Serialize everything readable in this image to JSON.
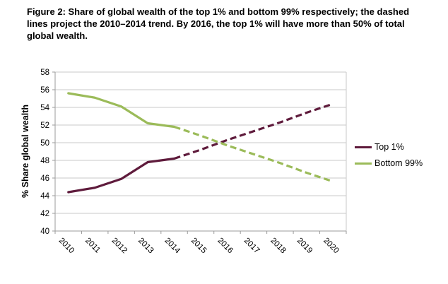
{
  "figure_caption": "Figure 2: Share of global wealth of the top 1% and bottom 99% respectively; the dashed lines project the 2010–2014 trend. By 2016, the top 1% will have more than 50% of total global wealth.",
  "chart_data": {
    "type": "line",
    "title": "Share of global wealth of the top 1% and bottom 99%",
    "xlabel": "",
    "ylabel": "% Share global wealth",
    "ylim": [
      40,
      58
    ],
    "y_tick_step": 2,
    "y_tick_labels": [
      58,
      56,
      54,
      52,
      50,
      48,
      46,
      44,
      42,
      40
    ],
    "x_tick_labels": [
      2010,
      2011,
      2012,
      2013,
      2014,
      2015,
      2016,
      2017,
      2018,
      2019,
      2020
    ],
    "grid": "horizontal",
    "legend_position": "right",
    "annotation": "solid = actual 2010–2014, dashed = projected trend to 2020; lines cross at 50% just before 2016",
    "series": [
      {
        "id": "top-1",
        "name": "Top 1%",
        "color": "#5f1b3c",
        "actual": {
          "years": [
            2010,
            2011,
            2012,
            2013,
            2014
          ],
          "values": [
            44.4,
            44.9,
            45.9,
            47.8,
            48.2
          ]
        },
        "projected": {
          "years": [
            2014,
            2015,
            2016,
            2017,
            2018,
            2019,
            2020
          ],
          "values": [
            48.2,
            49.2,
            50.3,
            51.3,
            52.3,
            53.4,
            54.4
          ]
        }
      },
      {
        "id": "bottom-99",
        "name": "Bottom 99%",
        "color": "#9bbb59",
        "actual": {
          "years": [
            2010,
            2011,
            2012,
            2013,
            2014
          ],
          "values": [
            55.6,
            55.1,
            54.1,
            52.2,
            51.8
          ]
        },
        "projected": {
          "years": [
            2014,
            2015,
            2016,
            2017,
            2018,
            2019,
            2020
          ],
          "values": [
            51.8,
            50.8,
            49.7,
            48.7,
            47.7,
            46.6,
            45.6
          ]
        }
      }
    ],
    "colors": {
      "gridline": "#c9c9c9",
      "axis": "#9b9b9b",
      "text": "#000000",
      "background": "#ffffff"
    }
  }
}
